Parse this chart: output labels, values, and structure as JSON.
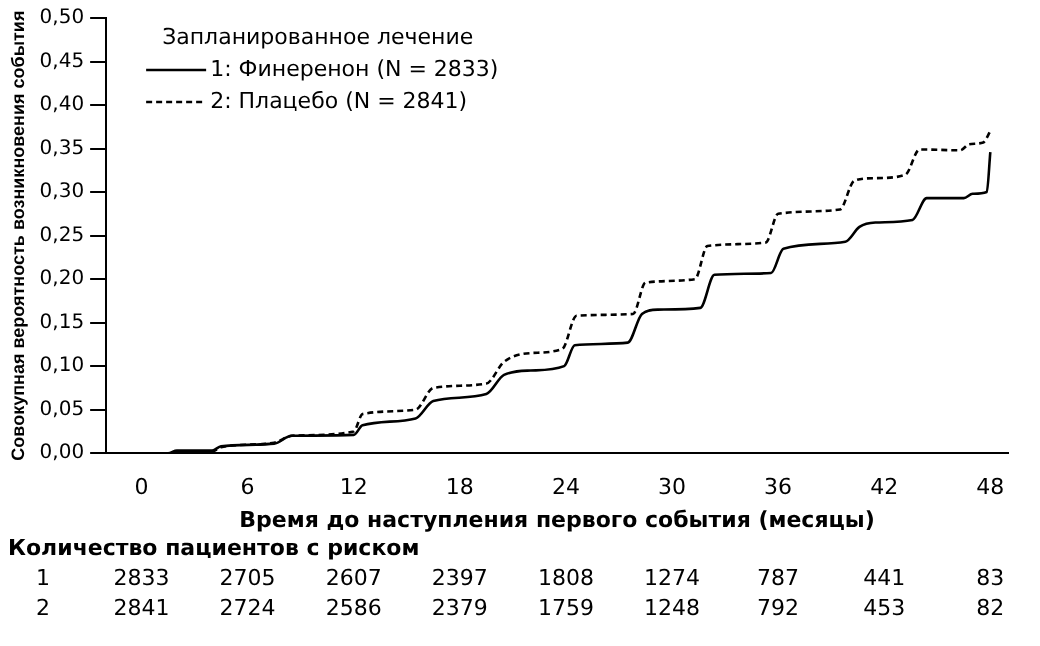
{
  "chart_data": {
    "type": "line",
    "xlabel": "Время до наступления первого события (месяцы)",
    "ylabel": "Совокупная вероятность возникновения события",
    "legend_title": "Запланированное лечение",
    "legend": "top left",
    "grid": false,
    "marker": "none",
    "xlim": [
      -2,
      49
    ],
    "xticks": [
      0,
      6,
      12,
      18,
      24,
      30,
      36,
      42,
      48
    ],
    "ylim": [
      0,
      0.5
    ],
    "yticks": [
      {
        "value": 0,
        "label": "0,00"
      },
      {
        "value": 0.05,
        "label": "0,05"
      },
      {
        "value": 0.1,
        "label": "0,10"
      },
      {
        "value": 0.15,
        "label": "0,15"
      },
      {
        "value": 0.2,
        "label": "0,20"
      },
      {
        "value": 0.25,
        "label": "0,25"
      },
      {
        "value": 0.3,
        "label": "0,30"
      },
      {
        "value": 0.35,
        "label": "0,35"
      },
      {
        "value": 0.4,
        "label": "0,40"
      },
      {
        "value": 0.45,
        "label": "0,45"
      },
      {
        "value": 0.5,
        "label": "0,50"
      }
    ],
    "series": [
      {
        "name": "1: Финеренон (N = 2833)",
        "color": "#000000",
        "line_style": "solid",
        "x": [
          0,
          1.5,
          2,
          4,
          4.5,
          7.5,
          8.5,
          12,
          12.5,
          15.5,
          16.5,
          19.5,
          20.5,
          22,
          23.9,
          24.5,
          27.5,
          28.3,
          29.2,
          31.6,
          32.4,
          35.6,
          36.3,
          39.8,
          40.6,
          41.5,
          43.6,
          44.4,
          46.5,
          47.0,
          47.8,
          48
        ],
        "values": [
          0,
          0,
          0.003,
          0.003,
          0.008,
          0.011,
          0.02,
          0.021,
          0.032,
          0.04,
          0.06,
          0.068,
          0.09,
          0.095,
          0.1,
          0.124,
          0.127,
          0.16,
          0.165,
          0.167,
          0.205,
          0.207,
          0.235,
          0.243,
          0.26,
          0.265,
          0.268,
          0.293,
          0.293,
          0.298,
          0.3,
          0.346
        ]
      },
      {
        "name": "2: Плацебо (N = 2841)",
        "color": "#000000",
        "line_style": "dashed",
        "x": [
          0,
          1.5,
          2,
          4,
          4.5,
          7.5,
          8.5,
          12,
          12.5,
          15.5,
          16.5,
          19.5,
          20.5,
          22,
          23.8,
          24.6,
          27.8,
          28.5,
          31.3,
          32.0,
          35.3,
          36.0,
          39.5,
          40.3,
          41.5,
          43.2,
          44.0,
          46.3,
          46.8,
          47.6,
          48
        ],
        "values": [
          0,
          0,
          0.002,
          0.002,
          0.007,
          0.012,
          0.02,
          0.025,
          0.045,
          0.05,
          0.075,
          0.08,
          0.105,
          0.115,
          0.12,
          0.158,
          0.16,
          0.196,
          0.2,
          0.238,
          0.242,
          0.275,
          0.28,
          0.313,
          0.316,
          0.32,
          0.349,
          0.348,
          0.355,
          0.357,
          0.37
        ]
      }
    ],
    "annotations": [
      "Количество пациентов с риском",
      "1 2833 2705 2607 2397 1808 1274 787 441 83",
      "2 2841 2724 2586 2379 1759 1248 792 453 82"
    ]
  }
}
